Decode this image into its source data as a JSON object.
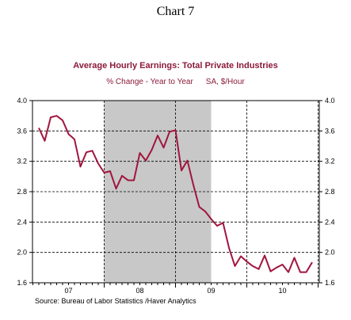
{
  "heading": "Chart 7",
  "chart_data": {
    "type": "line",
    "title": "Average Hourly Earnings: Total Private Industries",
    "subtitle_left": "% Change - Year to Year",
    "subtitle_right": "SA, $/Hour",
    "source": "Source:  Bureau of Labor Statistics /Haver Analytics",
    "ylim": [
      1.6,
      4.0
    ],
    "y_ticks": [
      "4.0",
      "3.6",
      "3.2",
      "2.8",
      "2.4",
      "2.0",
      "1.6"
    ],
    "x_labels": [
      "07",
      "08",
      "09",
      "10"
    ],
    "grid": true,
    "recession_shading": {
      "start_month_index": 11,
      "end_month_index": 29
    },
    "series_color": "#a0153e",
    "shading_color": "#c8c8c8",
    "series": [
      {
        "values": [
          3.64,
          3.47,
          3.78,
          3.8,
          3.74,
          3.56,
          3.49,
          3.13,
          3.32,
          3.34,
          3.17,
          3.05,
          3.07,
          2.84,
          3.01,
          2.95,
          2.95,
          3.31,
          3.21,
          3.35,
          3.54,
          3.38,
          3.59,
          3.61,
          3.08,
          3.21,
          2.89,
          2.6,
          2.54,
          2.44,
          2.35,
          2.39,
          2.06,
          1.82,
          1.95,
          1.88,
          1.82,
          1.78,
          1.96,
          1.75,
          1.8,
          1.84,
          1.74,
          1.93,
          1.74,
          1.74,
          1.87
        ]
      }
    ]
  }
}
